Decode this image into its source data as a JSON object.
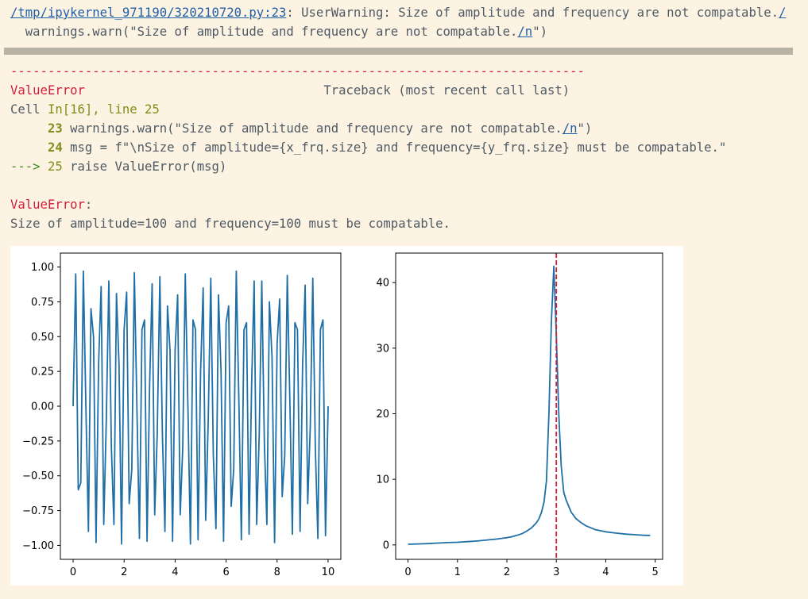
{
  "warning": {
    "file_link": "/tmp/ipykernel_971190/320210720.py:23",
    "message": ": UserWarning: Size of amplitude and frequency are not compatable.",
    "message_link": "/",
    "code_pre": "  warnings.warn(\"Size of amplitude and frequency are not compatable.",
    "code_link": "/n",
    "code_post": "\")"
  },
  "traceback": {
    "separator": "-----------------------------------------------------------------------------",
    "error_type": "ValueError",
    "header": "                                Traceback (most recent call last)",
    "cell_prefix": "Cell ",
    "cell_ref": "In[16], line 25",
    "lines": [
      {
        "prefix": "     ",
        "num": "23",
        "code_pre": " warnings.warn(\"Size of amplitude and frequency are not compatable.",
        "code_link": "/n",
        "code_post": "\")"
      },
      {
        "prefix": "     ",
        "num": "24",
        "code_pre": " msg = f\"\\nSize of amplitude={x_frq.size} and frequency={y_frq.size} must be compatable.\"",
        "code_link": "",
        "code_post": ""
      },
      {
        "prefix": "---> ",
        "num": "25",
        "code_pre": " raise ValueError(msg)",
        "code_link": "",
        "code_post": ""
      }
    ],
    "final_error_type": "ValueError",
    "final_colon": ":",
    "final_message": "Size of amplitude=100 and frequency=100 must be compatable."
  },
  "colors": {
    "background": "#fcf3e2",
    "error_red": "#d21e3a",
    "olive": "#7f8f1a",
    "link": "#1f5fa9",
    "series": "#1f6fa6",
    "marker_line": "#d21e3a"
  },
  "chart_data": [
    {
      "type": "line",
      "title": "",
      "xlabel": "",
      "ylabel": "",
      "xlim": [
        -0.5,
        10.5
      ],
      "ylim": [
        -1.1,
        1.1
      ],
      "xticks": [
        0,
        2,
        4,
        6,
        8,
        10
      ],
      "xtick_labels": [
        "0",
        "2",
        "4",
        "6",
        "8",
        "10"
      ],
      "yticks": [
        1.0,
        0.75,
        0.5,
        0.25,
        0.0,
        -0.25,
        -0.5,
        -0.75,
        -1.0
      ],
      "ytick_labels": [
        "1.00",
        "0.75",
        "0.50",
        "0.25",
        "0.00",
        "−0.25",
        "−0.50",
        "−0.75",
        "−1.00"
      ],
      "grid": false,
      "series": [
        {
          "x": [
            0,
            0.1,
            0.2,
            0.3,
            0.4,
            0.5,
            0.6,
            0.7,
            0.8,
            0.9,
            1.0,
            1.1,
            1.2,
            1.3,
            1.4,
            1.5,
            1.6,
            1.7,
            1.8,
            1.9,
            2.0,
            2.1,
            2.2,
            2.3,
            2.4,
            2.5,
            2.6,
            2.7,
            2.8,
            2.9,
            3.0,
            3.1,
            3.2,
            3.3,
            3.4,
            3.5,
            3.6,
            3.7,
            3.8,
            3.9,
            4.0,
            4.1,
            4.2,
            4.3,
            4.4,
            4.5,
            4.6,
            4.7,
            4.8,
            4.9,
            5.0,
            5.1,
            5.2,
            5.3,
            5.4,
            5.5,
            5.6,
            5.7,
            5.8,
            5.9,
            6.0,
            6.1,
            6.2,
            6.3,
            6.4,
            6.5,
            6.6,
            6.7,
            6.8,
            6.9,
            7.0,
            7.1,
            7.2,
            7.3,
            7.4,
            7.5,
            7.6,
            7.7,
            7.8,
            7.9,
            8.0,
            8.1,
            8.2,
            8.3,
            8.4,
            8.5,
            8.6,
            8.7,
            8.8,
            8.9,
            9.0,
            9.1,
            9.2,
            9.3,
            9.4,
            9.5,
            9.6,
            9.7,
            9.8,
            9.9,
            10.0
          ],
          "y": [
            0.0,
            0.95,
            -0.6,
            -0.55,
            0.97,
            0.0,
            -0.9,
            0.7,
            0.5,
            -0.98,
            0.3,
            0.86,
            -0.85,
            -0.1,
            0.9,
            -0.3,
            -0.85,
            0.81,
            0.3,
            -0.99,
            0.55,
            0.82,
            -0.7,
            -0.45,
            0.96,
            0.0,
            -0.95,
            0.55,
            0.62,
            -0.97,
            0.15,
            0.88,
            -0.78,
            -0.2,
            0.93,
            -0.2,
            -0.9,
            0.72,
            0.4,
            -0.97,
            0.4,
            0.8,
            -0.78,
            -0.3,
            0.95,
            0.0,
            -0.99,
            0.62,
            0.55,
            -0.96,
            0.25,
            0.85,
            -0.82,
            -0.1,
            0.92,
            -0.35,
            -0.88,
            0.8,
            0.25,
            -0.97,
            0.6,
            0.72,
            -0.72,
            -0.45,
            0.97,
            0.05,
            -0.96,
            0.55,
            0.6,
            -0.92,
            0.15,
            0.9,
            -0.85,
            -0.2,
            0.9,
            -0.25,
            -0.85,
            0.75,
            0.35,
            -0.98,
            0.45,
            0.77,
            -0.65,
            -0.35,
            0.94,
            0.05,
            -0.92,
            0.6,
            0.55,
            -0.9,
            0.3,
            0.87,
            -0.7,
            -0.15,
            0.92,
            -0.3,
            -0.95,
            0.55,
            0.62,
            -0.93,
            0.0
          ]
        }
      ]
    },
    {
      "type": "line",
      "title": "",
      "xlabel": "",
      "ylabel": "",
      "xlim": [
        -0.25,
        5.15
      ],
      "ylim": [
        -2.2,
        44.5
      ],
      "xticks": [
        0,
        1,
        2,
        3,
        4,
        5
      ],
      "xtick_labels": [
        "0",
        "1",
        "2",
        "3",
        "4",
        "5"
      ],
      "yticks": [
        0,
        10,
        20,
        30,
        40
      ],
      "ytick_labels": [
        "0",
        "10",
        "20",
        "30",
        "40"
      ],
      "grid": false,
      "series": [
        {
          "x": [
            0,
            0.2,
            0.4,
            0.6,
            0.8,
            1.0,
            1.2,
            1.4,
            1.6,
            1.8,
            2.0,
            2.1,
            2.2,
            2.3,
            2.4,
            2.5,
            2.6,
            2.65,
            2.7,
            2.75,
            2.8,
            2.85,
            2.9,
            2.95,
            3.0,
            3.05,
            3.1,
            3.15,
            3.2,
            3.3,
            3.4,
            3.5,
            3.6,
            3.8,
            4.0,
            4.2,
            4.4,
            4.6,
            4.8,
            4.9
          ],
          "y": [
            0.1,
            0.15,
            0.2,
            0.28,
            0.35,
            0.4,
            0.5,
            0.6,
            0.75,
            0.9,
            1.1,
            1.25,
            1.45,
            1.7,
            2.1,
            2.6,
            3.4,
            4.0,
            5.0,
            6.5,
            9.8,
            20.0,
            34.0,
            42.5,
            32.0,
            20.0,
            12.0,
            8.0,
            6.8,
            5.0,
            4.0,
            3.4,
            2.9,
            2.3,
            2.0,
            1.8,
            1.65,
            1.55,
            1.45,
            1.45
          ]
        }
      ],
      "vline": {
        "x": 3.0,
        "style": "dashed"
      }
    }
  ]
}
